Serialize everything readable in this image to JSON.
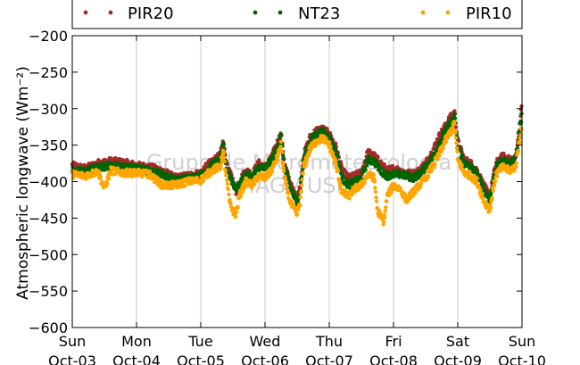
{
  "chart_data": {
    "type": "scatter",
    "ylabel": "Atmospheric longwave (Wm⁻²)",
    "ylim": [
      -600,
      -200
    ],
    "yticks": [
      -200,
      -250,
      -300,
      -350,
      -400,
      -450,
      -500,
      -550,
      -600
    ],
    "xlim": [
      0,
      7
    ],
    "x_unit": "days from Sun Oct-03",
    "xticks": [
      {
        "day": "Sun",
        "date": "Oct-03"
      },
      {
        "day": "Mon",
        "date": "Oct-04"
      },
      {
        "day": "Tue",
        "date": "Oct-05"
      },
      {
        "day": "Wed",
        "date": "Oct-06"
      },
      {
        "day": "Thu",
        "date": "Oct-07"
      },
      {
        "day": "Fri",
        "date": "Oct-08"
      },
      {
        "day": "Sat",
        "date": "Oct-09"
      },
      {
        "day": "Sun",
        "date": "Oct-10"
      }
    ],
    "grid_x": true,
    "grid_y": false,
    "legend_position": "top",
    "watermark": [
      "Grupo de Micrometeorologia",
      "IAG / USP"
    ],
    "series": [
      {
        "name": "PIR20",
        "color": "#a52a2a",
        "offset": 6,
        "points": [
          [
            0,
            -378
          ],
          [
            0.2,
            -382
          ],
          [
            0.4,
            -375
          ],
          [
            0.6,
            -372
          ],
          [
            0.8,
            -374
          ],
          [
            1.0,
            -378
          ],
          [
            1.2,
            -380
          ],
          [
            1.4,
            -385
          ],
          [
            1.6,
            -395
          ],
          [
            1.8,
            -392
          ],
          [
            2.0,
            -388
          ],
          [
            2.1,
            -378
          ],
          [
            2.2,
            -370
          ],
          [
            2.3,
            -365
          ],
          [
            2.35,
            -345
          ],
          [
            2.4,
            -378
          ],
          [
            2.5,
            -398
          ],
          [
            2.55,
            -415
          ],
          [
            2.6,
            -400
          ],
          [
            2.7,
            -385
          ],
          [
            2.8,
            -390
          ],
          [
            2.9,
            -375
          ],
          [
            3.0,
            -380
          ],
          [
            3.1,
            -368
          ],
          [
            3.2,
            -345
          ],
          [
            3.25,
            -335
          ],
          [
            3.3,
            -375
          ],
          [
            3.4,
            -405
          ],
          [
            3.5,
            -425
          ],
          [
            3.55,
            -405
          ],
          [
            3.6,
            -365
          ],
          [
            3.7,
            -340
          ],
          [
            3.8,
            -330
          ],
          [
            3.9,
            -328
          ],
          [
            4.0,
            -335
          ],
          [
            4.1,
            -352
          ],
          [
            4.2,
            -385
          ],
          [
            4.3,
            -395
          ],
          [
            4.4,
            -392
          ],
          [
            4.5,
            -388
          ],
          [
            4.6,
            -360
          ],
          [
            4.7,
            -365
          ],
          [
            4.8,
            -375
          ],
          [
            4.9,
            -385
          ],
          [
            5.0,
            -382
          ],
          [
            5.1,
            -385
          ],
          [
            5.2,
            -388
          ],
          [
            5.3,
            -390
          ],
          [
            5.4,
            -385
          ],
          [
            5.5,
            -375
          ],
          [
            5.6,
            -360
          ],
          [
            5.7,
            -340
          ],
          [
            5.8,
            -325
          ],
          [
            5.9,
            -310
          ],
          [
            5.95,
            -305
          ],
          [
            6.0,
            -345
          ],
          [
            6.1,
            -370
          ],
          [
            6.2,
            -375
          ],
          [
            6.3,
            -385
          ],
          [
            6.4,
            -405
          ],
          [
            6.5,
            -420
          ],
          [
            6.55,
            -395
          ],
          [
            6.6,
            -375
          ],
          [
            6.7,
            -365
          ],
          [
            6.8,
            -370
          ],
          [
            6.9,
            -368
          ],
          [
            7.0,
            -295
          ]
        ]
      },
      {
        "name": "NT23",
        "color": "#006400",
        "offset": 3,
        "points": [
          [
            0,
            -385
          ],
          [
            0.2,
            -386
          ],
          [
            0.4,
            -380
          ],
          [
            0.6,
            -378
          ],
          [
            0.8,
            -380
          ],
          [
            1.0,
            -382
          ],
          [
            1.2,
            -385
          ],
          [
            1.4,
            -390
          ],
          [
            1.6,
            -398
          ],
          [
            1.8,
            -395
          ],
          [
            2.0,
            -392
          ],
          [
            2.1,
            -383
          ],
          [
            2.2,
            -375
          ],
          [
            2.3,
            -370
          ],
          [
            2.35,
            -350
          ],
          [
            2.4,
            -382
          ],
          [
            2.5,
            -402
          ],
          [
            2.55,
            -410
          ],
          [
            2.6,
            -405
          ],
          [
            2.7,
            -390
          ],
          [
            2.8,
            -395
          ],
          [
            2.9,
            -380
          ],
          [
            3.0,
            -382
          ],
          [
            3.1,
            -372
          ],
          [
            3.2,
            -350
          ],
          [
            3.25,
            -338
          ],
          [
            3.3,
            -380
          ],
          [
            3.4,
            -410
          ],
          [
            3.5,
            -430
          ],
          [
            3.55,
            -410
          ],
          [
            3.6,
            -370
          ],
          [
            3.7,
            -345
          ],
          [
            3.8,
            -335
          ],
          [
            3.9,
            -332
          ],
          [
            4.0,
            -340
          ],
          [
            4.1,
            -358
          ],
          [
            4.2,
            -395
          ],
          [
            4.3,
            -405
          ],
          [
            4.4,
            -400
          ],
          [
            4.5,
            -395
          ],
          [
            4.6,
            -370
          ],
          [
            4.7,
            -372
          ],
          [
            4.8,
            -385
          ],
          [
            4.9,
            -392
          ],
          [
            5.0,
            -390
          ],
          [
            5.1,
            -390
          ],
          [
            5.2,
            -392
          ],
          [
            5.3,
            -395
          ],
          [
            5.4,
            -390
          ],
          [
            5.5,
            -380
          ],
          [
            5.6,
            -368
          ],
          [
            5.7,
            -350
          ],
          [
            5.8,
            -332
          ],
          [
            5.9,
            -318
          ],
          [
            5.95,
            -312
          ],
          [
            6.0,
            -350
          ],
          [
            6.1,
            -375
          ],
          [
            6.2,
            -380
          ],
          [
            6.3,
            -390
          ],
          [
            6.4,
            -410
          ],
          [
            6.5,
            -425
          ],
          [
            6.55,
            -400
          ],
          [
            6.6,
            -380
          ],
          [
            6.7,
            -372
          ],
          [
            6.8,
            -375
          ],
          [
            6.9,
            -372
          ],
          [
            7.0,
            -305
          ]
        ]
      },
      {
        "name": "PIR10",
        "color": "#ffa500",
        "offset": 0,
        "points": [
          [
            0,
            -390
          ],
          [
            0.2,
            -392
          ],
          [
            0.4,
            -386
          ],
          [
            0.5,
            -410
          ],
          [
            0.6,
            -385
          ],
          [
            0.8,
            -388
          ],
          [
            1.0,
            -388
          ],
          [
            1.2,
            -390
          ],
          [
            1.4,
            -405
          ],
          [
            1.6,
            -405
          ],
          [
            1.8,
            -400
          ],
          [
            2.0,
            -398
          ],
          [
            2.1,
            -390
          ],
          [
            2.2,
            -383
          ],
          [
            2.3,
            -380
          ],
          [
            2.35,
            -360
          ],
          [
            2.4,
            -395
          ],
          [
            2.45,
            -430
          ],
          [
            2.5,
            -440
          ],
          [
            2.55,
            -445
          ],
          [
            2.6,
            -420
          ],
          [
            2.7,
            -400
          ],
          [
            2.8,
            -405
          ],
          [
            2.9,
            -392
          ],
          [
            3.0,
            -395
          ],
          [
            3.1,
            -385
          ],
          [
            3.2,
            -365
          ],
          [
            3.25,
            -350
          ],
          [
            3.3,
            -395
          ],
          [
            3.4,
            -430
          ],
          [
            3.5,
            -445
          ],
          [
            3.55,
            -425
          ],
          [
            3.6,
            -380
          ],
          [
            3.7,
            -355
          ],
          [
            3.8,
            -345
          ],
          [
            3.9,
            -340
          ],
          [
            4.0,
            -350
          ],
          [
            4.1,
            -375
          ],
          [
            4.2,
            -415
          ],
          [
            4.3,
            -420
          ],
          [
            4.4,
            -410
          ],
          [
            4.5,
            -405
          ],
          [
            4.6,
            -390
          ],
          [
            4.7,
            -395
          ],
          [
            4.75,
            -440
          ],
          [
            4.85,
            -455
          ],
          [
            4.9,
            -420
          ],
          [
            5.0,
            -405
          ],
          [
            5.1,
            -410
          ],
          [
            5.2,
            -425
          ],
          [
            5.3,
            -415
          ],
          [
            5.4,
            -405
          ],
          [
            5.5,
            -395
          ],
          [
            5.6,
            -380
          ],
          [
            5.7,
            -365
          ],
          [
            5.8,
            -345
          ],
          [
            5.9,
            -330
          ],
          [
            5.95,
            -320
          ],
          [
            6.0,
            -370
          ],
          [
            6.1,
            -388
          ],
          [
            6.2,
            -392
          ],
          [
            6.3,
            -400
          ],
          [
            6.4,
            -425
          ],
          [
            6.5,
            -440
          ],
          [
            6.55,
            -410
          ],
          [
            6.6,
            -390
          ],
          [
            6.7,
            -380
          ],
          [
            6.8,
            -385
          ],
          [
            6.9,
            -380
          ],
          [
            7.0,
            -320
          ]
        ]
      }
    ]
  }
}
